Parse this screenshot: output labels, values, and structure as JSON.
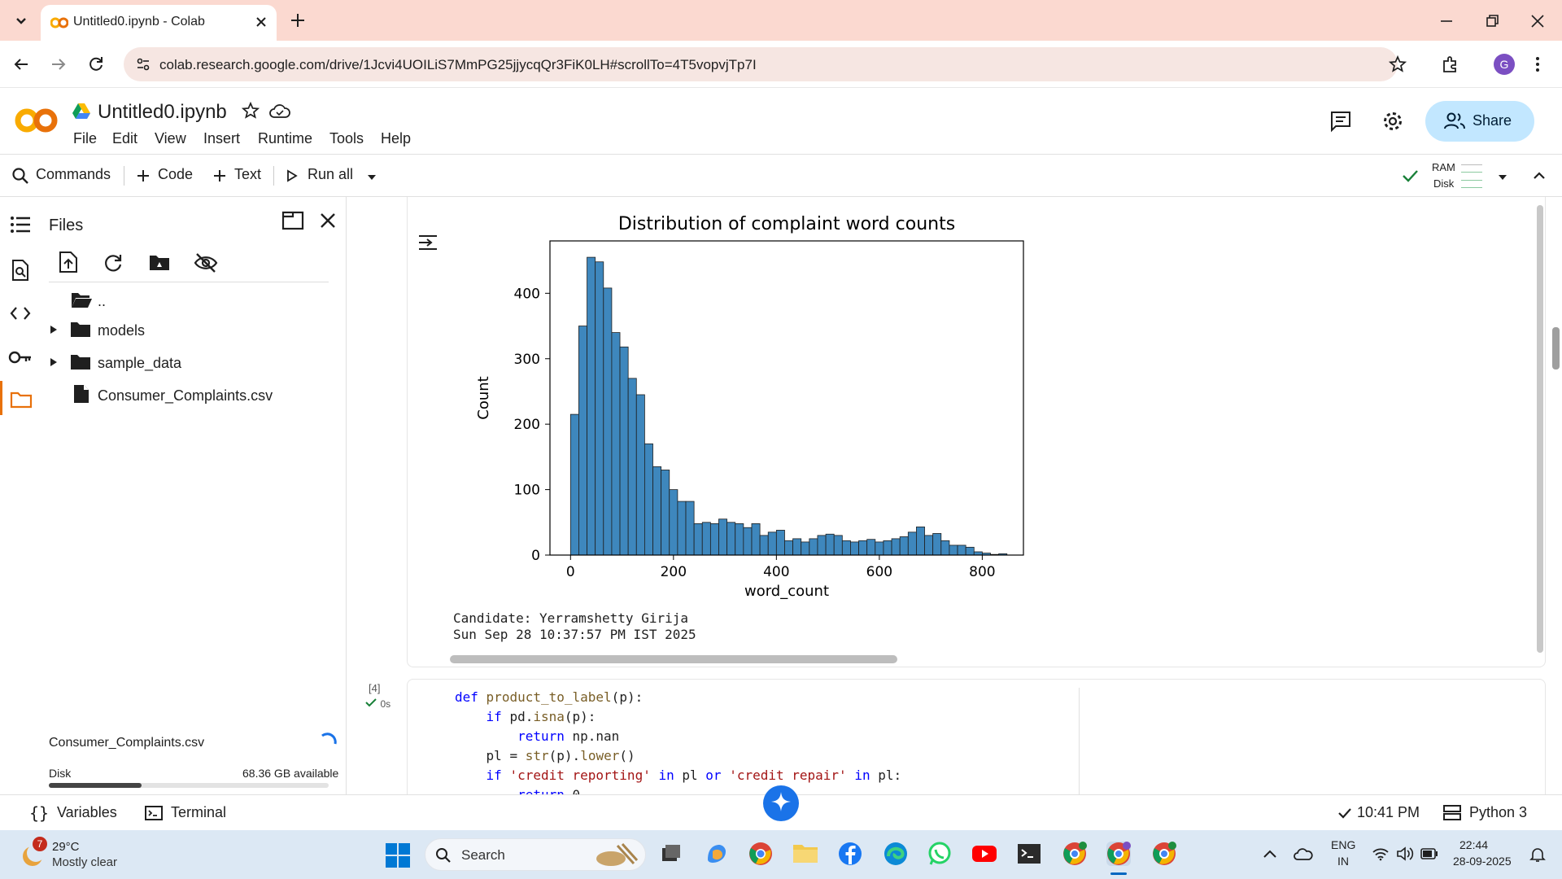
{
  "browser": {
    "tab_title": "Untitled0.ipynb - Colab",
    "url": "colab.research.google.com/drive/1Jcvi4UOILiS7MmPG25jjycqQr3FiK0LH#scrollTo=4T5vopvjTp7I",
    "profile_initial": "G"
  },
  "colab": {
    "notebook_title": "Untitled0.ipynb",
    "menu": [
      "File",
      "Edit",
      "View",
      "Insert",
      "Runtime",
      "Tools",
      "Help"
    ],
    "share_label": "Share",
    "toolbar": {
      "commands": "Commands",
      "code": "Code",
      "text": "Text",
      "run_all": "Run all",
      "ram": "RAM",
      "disk": "Disk"
    }
  },
  "files": {
    "title": "Files",
    "items": [
      {
        "name": "..",
        "type": "folder-up"
      },
      {
        "name": "models",
        "type": "folder"
      },
      {
        "name": "sample_data",
        "type": "folder"
      },
      {
        "name": "Consumer_Complaints.csv",
        "type": "file"
      }
    ],
    "uploading_file": "Consumer_Complaints.csv",
    "disk_label": "Disk",
    "disk_available": "68.36 GB available",
    "disk_used_fraction": 0.33
  },
  "output": {
    "candidate_line": "Candidate: Yerramshetty Girija",
    "timestamp_line": "Sun Sep 28 10:37:57 PM IST 2025"
  },
  "chart_data": {
    "type": "bar",
    "title": "Distribution of complaint word counts",
    "xlabel": "word_count",
    "ylabel": "Count",
    "xlim": [
      -40,
      880
    ],
    "ylim": [
      0,
      480
    ],
    "xticks": [
      0,
      200,
      400,
      600,
      800
    ],
    "yticks": [
      0,
      100,
      200,
      300,
      400
    ],
    "bin_start": 0,
    "bin_width": 16,
    "values": [
      215,
      350,
      455,
      448,
      408,
      340,
      318,
      270,
      245,
      170,
      135,
      130,
      100,
      82,
      82,
      48,
      50,
      48,
      55,
      50,
      48,
      42,
      48,
      30,
      35,
      38,
      22,
      25,
      20,
      25,
      30,
      32,
      30,
      22,
      20,
      22,
      24,
      20,
      22,
      25,
      28,
      35,
      43,
      30,
      33,
      22,
      15,
      15,
      12,
      5,
      3,
      1,
      2
    ],
    "bar_color": "#3e87bd"
  },
  "code_cell": {
    "exec_count": "[4]",
    "exec_time": "0s",
    "lines": [
      "def product_to_label(p):",
      "    if pd.isna(p):",
      "        return np.nan",
      "    pl = str(p).lower()",
      "    if 'credit reporting' in pl or 'credit repair' in pl:",
      "        return 0"
    ]
  },
  "statusbar": {
    "variables": "Variables",
    "terminal": "Terminal",
    "time": "10:41 PM",
    "runtime": "Python 3"
  },
  "taskbar": {
    "weather_temp": "29°C",
    "weather_desc": "Mostly clear",
    "weather_badge": "7",
    "search_placeholder": "Search",
    "lang_line1": "ENG",
    "lang_line2": "IN",
    "clock_time": "22:44",
    "clock_date": "28-09-2025"
  }
}
